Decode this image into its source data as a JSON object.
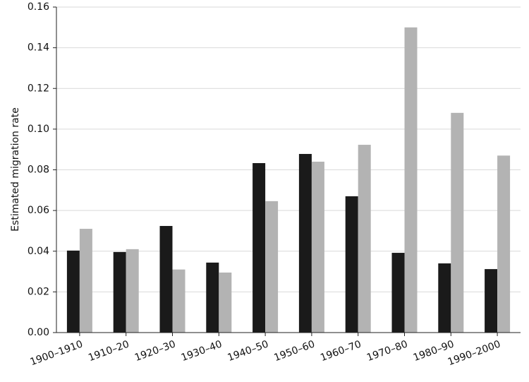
{
  "chart_data": {
    "type": "bar",
    "y_label": "Estimated migration rate",
    "categories": [
      "1900–1910",
      "1910–20",
      "1920–30",
      "1930–40",
      "1940–50",
      "1950–60",
      "1960–70",
      "1970–80",
      "1980–90",
      "1990–2000"
    ],
    "series": [
      {
        "color": "#1a1a1a",
        "values": [
          0.0403,
          0.0396,
          0.0524,
          0.0344,
          0.0833,
          0.0878,
          0.067,
          0.0392,
          0.034,
          0.0312
        ]
      },
      {
        "color": "#b3b3b3",
        "values": [
          0.051,
          0.041,
          0.031,
          0.0295,
          0.0646,
          0.084,
          0.0923,
          0.15,
          0.108,
          0.087
        ]
      }
    ],
    "ylim": [
      0,
      0.16
    ],
    "yticks": [
      {
        "value": 0,
        "label": "0.00"
      },
      0.02,
      0.04,
      0.06,
      0.08,
      {
        "value": 0.1,
        "label": "0.10"
      },
      0.12,
      0.14,
      0.16
    ],
    "grid": true
  }
}
